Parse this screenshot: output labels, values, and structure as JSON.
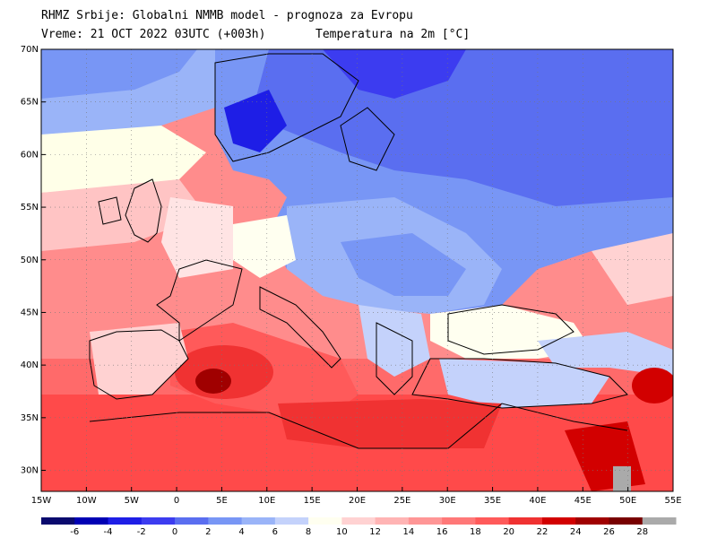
{
  "header": {
    "line1": "RHMZ Srbije: Globalni NMMB model - prognoza za Evropu",
    "line2": "Vreme: 21 OCT 2022 03UTC (+003h)",
    "line3": "Temperatura na 2m [°C]"
  },
  "lat_labels": [
    "70N",
    "65N",
    "60N",
    "55N",
    "50N",
    "45N",
    "40N",
    "35N",
    "30N"
  ],
  "lat_values": [
    70,
    65,
    60,
    55,
    50,
    45,
    40,
    35,
    30
  ],
  "lon_labels": [
    "15W",
    "10W",
    "5W",
    "0",
    "5E",
    "10E",
    "15E",
    "20E",
    "25E",
    "30E",
    "35E",
    "40E",
    "45E",
    "50E",
    "55E"
  ],
  "lon_values": [
    -15,
    -10,
    -5,
    0,
    5,
    10,
    15,
    20,
    25,
    30,
    35,
    40,
    45,
    50,
    55
  ],
  "colorbar": {
    "labels": [
      "-6",
      "-4",
      "-2",
      "0",
      "2",
      "4",
      "6",
      "8",
      "10",
      "12",
      "14",
      "16",
      "18",
      "20",
      "22",
      "24",
      "26",
      "28"
    ],
    "colors": [
      "#0a0a6e",
      "#0000b4",
      "#1e1ee6",
      "#3c3cf0",
      "#5a6ef0",
      "#7896f5",
      "#9ab4f8",
      "#c4d2fb",
      "#fffff0",
      "#ffd2d2",
      "#ffb4b4",
      "#ff9696",
      "#ff7878",
      "#ff5a5a",
      "#f03232",
      "#d20000",
      "#a00000",
      "#780000",
      "#aaaaaa"
    ]
  }
}
